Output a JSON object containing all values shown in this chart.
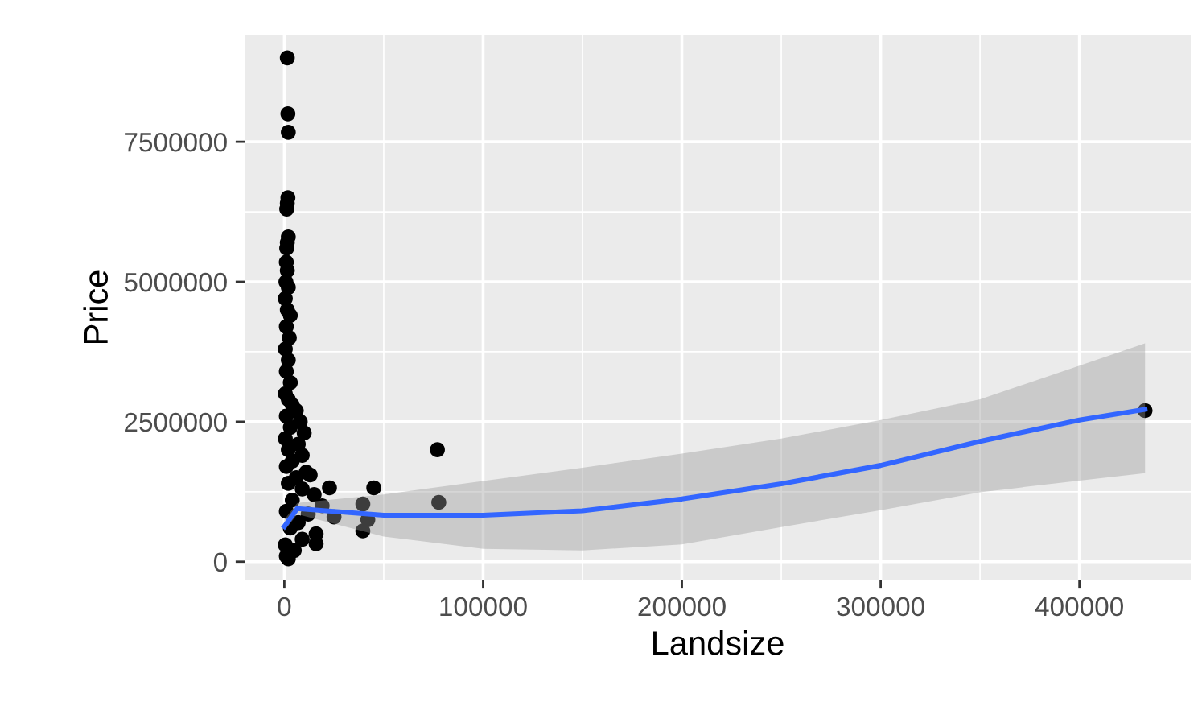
{
  "chart_data": {
    "type": "scatter",
    "xlabel": "Landsize",
    "ylabel": "Price",
    "xlim": [
      -20000,
      456000
    ],
    "ylim": [
      -320000,
      9400000
    ],
    "xticks": [
      0,
      100000,
      200000,
      300000,
      400000
    ],
    "yticks": [
      0,
      2500000,
      5000000,
      7500000
    ],
    "grid": true,
    "series": [
      {
        "marker": "circle",
        "color": "#000000",
        "x": [
          1500,
          1800,
          2000,
          1800,
          1500,
          1200,
          2000,
          1500,
          1200,
          1000,
          1500,
          800,
          2000,
          500,
          1500,
          3000,
          1000,
          2500,
          500,
          2000,
          1000,
          3000,
          500,
          2000,
          4000,
          1000,
          6000,
          8000,
          3000,
          10000,
          500,
          7000,
          2000,
          9000,
          4000,
          1000,
          11000,
          13000,
          6000,
          2000,
          9000,
          22700,
          15000,
          4000,
          19000,
          1000,
          12000,
          25000,
          7000,
          3000,
          16000,
          9000,
          16000,
          500,
          5000,
          1000,
          2000,
          45000,
          39500,
          39500,
          42000,
          77000,
          77700,
          433000
        ],
        "values": [
          9000000,
          8000000,
          7670000,
          6500000,
          6400000,
          6300000,
          5800000,
          5700000,
          5600000,
          5350000,
          5200000,
          5000000,
          4900000,
          4700000,
          4500000,
          4400000,
          4200000,
          4000000,
          3800000,
          3600000,
          3400000,
          3200000,
          3000000,
          2900000,
          2800000,
          2600000,
          2700000,
          2500000,
          2400000,
          2300000,
          2200000,
          2100000,
          2000000,
          1900000,
          1800000,
          1700000,
          1600000,
          1550000,
          1500000,
          1400000,
          1300000,
          1320000,
          1200000,
          1100000,
          1000000,
          900000,
          850000,
          800000,
          700000,
          600000,
          500000,
          400000,
          320000,
          300000,
          200000,
          100000,
          50000,
          1320000,
          1030000,
          550000,
          750000,
          2000000,
          1060000,
          2700000
        ]
      },
      {
        "type": "line",
        "color": "#3366ff",
        "marker": "none",
        "line_style": "solid",
        "x": [
          0,
          6500,
          50000,
          100000,
          150000,
          200000,
          250000,
          300000,
          350000,
          400000,
          433000
        ],
        "values": [
          630000,
          950000,
          830000,
          830000,
          910000,
          1120000,
          1390000,
          1720000,
          2150000,
          2530000,
          2720000
        ],
        "lower": [
          550000,
          850000,
          450000,
          230000,
          200000,
          310000,
          620000,
          920000,
          1240000,
          1450000,
          1580000
        ],
        "upper": [
          750000,
          1050000,
          1200000,
          1440000,
          1680000,
          1930000,
          2200000,
          2530000,
          2900000,
          3500000,
          3900000
        ]
      }
    ]
  }
}
